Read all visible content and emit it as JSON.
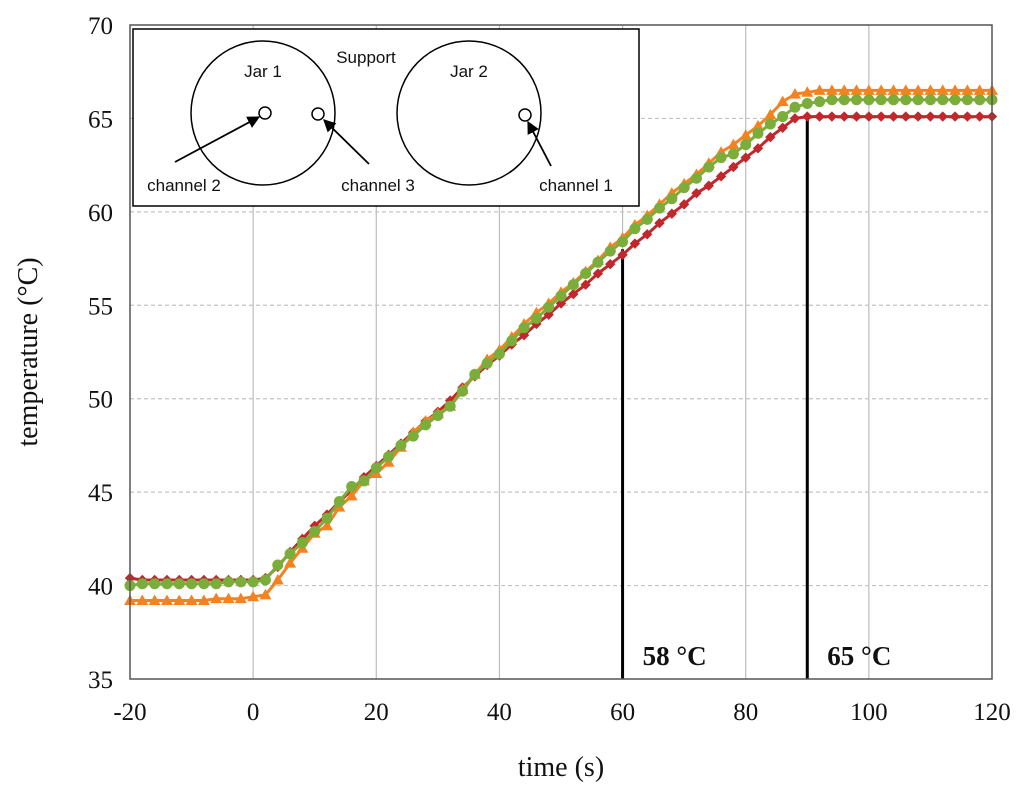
{
  "chart_data": {
    "type": "line",
    "xlabel": "time (s)",
    "ylabel": "temperature (°C)",
    "xlim": [
      -20,
      120
    ],
    "ylim": [
      35,
      70
    ],
    "xticks": [
      -20,
      0,
      20,
      40,
      60,
      80,
      100,
      120
    ],
    "yticks": [
      35,
      40,
      45,
      50,
      55,
      60,
      65,
      70
    ],
    "grid": true,
    "series": [
      {
        "name": "channel 1",
        "color": "#c0282d",
        "marker": "diamond",
        "points": [
          [
            -20,
            40.4
          ],
          [
            -18,
            40.3
          ],
          [
            -16,
            40.3
          ],
          [
            -14,
            40.3
          ],
          [
            -12,
            40.3
          ],
          [
            -10,
            40.3
          ],
          [
            -8,
            40.3
          ],
          [
            -6,
            40.3
          ],
          [
            -4,
            40.3
          ],
          [
            -2,
            40.3
          ],
          [
            0,
            40.3
          ],
          [
            2,
            40.4
          ],
          [
            4,
            41.0
          ],
          [
            6,
            41.8
          ],
          [
            8,
            42.5
          ],
          [
            10,
            43.2
          ],
          [
            12,
            43.8
          ],
          [
            14,
            44.5
          ],
          [
            16,
            45.1
          ],
          [
            18,
            45.8
          ],
          [
            20,
            46.4
          ],
          [
            22,
            47.0
          ],
          [
            24,
            47.6
          ],
          [
            26,
            48.2
          ],
          [
            28,
            48.8
          ],
          [
            30,
            49.3
          ],
          [
            32,
            49.9
          ],
          [
            34,
            50.6
          ],
          [
            36,
            51.2
          ],
          [
            38,
            51.8
          ],
          [
            40,
            52.3
          ],
          [
            42,
            52.9
          ],
          [
            44,
            53.4
          ],
          [
            46,
            54.0
          ],
          [
            48,
            54.5
          ],
          [
            50,
            55.1
          ],
          [
            52,
            55.6
          ],
          [
            54,
            56.1
          ],
          [
            56,
            56.7
          ],
          [
            58,
            57.2
          ],
          [
            60,
            57.7
          ],
          [
            62,
            58.3
          ],
          [
            64,
            58.8
          ],
          [
            66,
            59.4
          ],
          [
            68,
            59.9
          ],
          [
            70,
            60.4
          ],
          [
            72,
            61.0
          ],
          [
            74,
            61.4
          ],
          [
            76,
            61.9
          ],
          [
            78,
            62.4
          ],
          [
            80,
            62.9
          ],
          [
            82,
            63.4
          ],
          [
            84,
            64.0
          ],
          [
            86,
            64.5
          ],
          [
            88,
            65.0
          ],
          [
            90,
            65.1
          ],
          [
            92,
            65.1
          ],
          [
            94,
            65.1
          ],
          [
            96,
            65.1
          ],
          [
            98,
            65.1
          ],
          [
            100,
            65.1
          ],
          [
            102,
            65.1
          ],
          [
            104,
            65.1
          ],
          [
            106,
            65.1
          ],
          [
            108,
            65.1
          ],
          [
            110,
            65.1
          ],
          [
            112,
            65.1
          ],
          [
            114,
            65.1
          ],
          [
            116,
            65.1
          ],
          [
            118,
            65.1
          ],
          [
            120,
            65.1
          ]
        ]
      },
      {
        "name": "channel 2",
        "color": "#7bad3b",
        "marker": "circle",
        "points": [
          [
            -20,
            40.0
          ],
          [
            -18,
            40.1
          ],
          [
            -16,
            40.1
          ],
          [
            -14,
            40.1
          ],
          [
            -12,
            40.1
          ],
          [
            -10,
            40.1
          ],
          [
            -8,
            40.1
          ],
          [
            -6,
            40.1
          ],
          [
            -4,
            40.2
          ],
          [
            -2,
            40.2
          ],
          [
            0,
            40.2
          ],
          [
            2,
            40.3
          ],
          [
            4,
            41.1
          ],
          [
            6,
            41.7
          ],
          [
            8,
            42.3
          ],
          [
            10,
            42.9
          ],
          [
            12,
            43.6
          ],
          [
            14,
            44.5
          ],
          [
            16,
            45.3
          ],
          [
            18,
            45.6
          ],
          [
            20,
            46.3
          ],
          [
            22,
            46.9
          ],
          [
            24,
            47.5
          ],
          [
            26,
            48.0
          ],
          [
            28,
            48.6
          ],
          [
            30,
            49.1
          ],
          [
            32,
            49.6
          ],
          [
            34,
            50.4
          ],
          [
            36,
            51.3
          ],
          [
            38,
            51.9
          ],
          [
            40,
            52.4
          ],
          [
            42,
            53.1
          ],
          [
            44,
            53.8
          ],
          [
            46,
            54.3
          ],
          [
            48,
            54.9
          ],
          [
            50,
            55.5
          ],
          [
            52,
            56.1
          ],
          [
            54,
            56.7
          ],
          [
            56,
            57.3
          ],
          [
            58,
            57.9
          ],
          [
            60,
            58.4
          ],
          [
            62,
            59.1
          ],
          [
            64,
            59.6
          ],
          [
            66,
            60.2
          ],
          [
            68,
            60.7
          ],
          [
            70,
            61.3
          ],
          [
            72,
            61.8
          ],
          [
            74,
            62.4
          ],
          [
            76,
            62.9
          ],
          [
            78,
            63.1
          ],
          [
            80,
            63.6
          ],
          [
            82,
            64.2
          ],
          [
            84,
            64.7
          ],
          [
            86,
            65.1
          ],
          [
            88,
            65.6
          ],
          [
            90,
            65.8
          ],
          [
            92,
            65.9
          ],
          [
            94,
            66.0
          ],
          [
            96,
            66.0
          ],
          [
            98,
            66.0
          ],
          [
            100,
            66.0
          ],
          [
            102,
            66.0
          ],
          [
            104,
            66.0
          ],
          [
            106,
            66.0
          ],
          [
            108,
            66.0
          ],
          [
            110,
            66.0
          ],
          [
            112,
            66.0
          ],
          [
            114,
            66.0
          ],
          [
            116,
            66.0
          ],
          [
            118,
            66.0
          ],
          [
            120,
            66.0
          ]
        ]
      },
      {
        "name": "channel 3",
        "color": "#f58220",
        "marker": "triangle",
        "points": [
          [
            -20,
            39.2
          ],
          [
            -18,
            39.2
          ],
          [
            -16,
            39.2
          ],
          [
            -14,
            39.2
          ],
          [
            -12,
            39.2
          ],
          [
            -10,
            39.2
          ],
          [
            -8,
            39.2
          ],
          [
            -6,
            39.3
          ],
          [
            -4,
            39.3
          ],
          [
            -2,
            39.3
          ],
          [
            0,
            39.4
          ],
          [
            2,
            39.5
          ],
          [
            4,
            40.3
          ],
          [
            6,
            41.2
          ],
          [
            8,
            42.0
          ],
          [
            10,
            42.8
          ],
          [
            12,
            43.2
          ],
          [
            14,
            44.2
          ],
          [
            16,
            44.8
          ],
          [
            18,
            45.6
          ],
          [
            20,
            46.0
          ],
          [
            22,
            46.6
          ],
          [
            24,
            47.4
          ],
          [
            26,
            48.2
          ],
          [
            28,
            48.8
          ],
          [
            30,
            49.2
          ],
          [
            32,
            49.6
          ],
          [
            34,
            50.5
          ],
          [
            36,
            51.3
          ],
          [
            38,
            52.1
          ],
          [
            40,
            52.6
          ],
          [
            42,
            53.3
          ],
          [
            44,
            54.0
          ],
          [
            46,
            54.6
          ],
          [
            48,
            55.1
          ],
          [
            50,
            55.7
          ],
          [
            52,
            56.2
          ],
          [
            54,
            56.8
          ],
          [
            56,
            57.4
          ],
          [
            58,
            58.1
          ],
          [
            60,
            58.6
          ],
          [
            62,
            59.3
          ],
          [
            64,
            59.8
          ],
          [
            66,
            60.4
          ],
          [
            68,
            61.0
          ],
          [
            70,
            61.5
          ],
          [
            72,
            62.0
          ],
          [
            74,
            62.6
          ],
          [
            76,
            63.2
          ],
          [
            78,
            63.6
          ],
          [
            80,
            64.1
          ],
          [
            82,
            64.6
          ],
          [
            84,
            65.2
          ],
          [
            86,
            65.9
          ],
          [
            88,
            66.3
          ],
          [
            90,
            66.4
          ],
          [
            92,
            66.5
          ],
          [
            94,
            66.5
          ],
          [
            96,
            66.5
          ],
          [
            98,
            66.5
          ],
          [
            100,
            66.5
          ],
          [
            102,
            66.5
          ],
          [
            104,
            66.5
          ],
          [
            106,
            66.5
          ],
          [
            108,
            66.5
          ],
          [
            110,
            66.5
          ],
          [
            112,
            66.5
          ],
          [
            114,
            66.5
          ],
          [
            116,
            66.5
          ],
          [
            118,
            66.5
          ],
          [
            120,
            66.5
          ]
        ]
      }
    ],
    "markers": [
      {
        "x": 60,
        "y_top": 58,
        "label": "58 °C"
      },
      {
        "x": 90,
        "y_top": 65,
        "label": "65 °C"
      }
    ]
  },
  "inset": {
    "support_label": "Support",
    "jar1_label": "Jar 1",
    "jar2_label": "Jar 2",
    "channel2_label": "channel 2",
    "channel3_label": "channel 3",
    "channel1_label": "channel 1"
  }
}
